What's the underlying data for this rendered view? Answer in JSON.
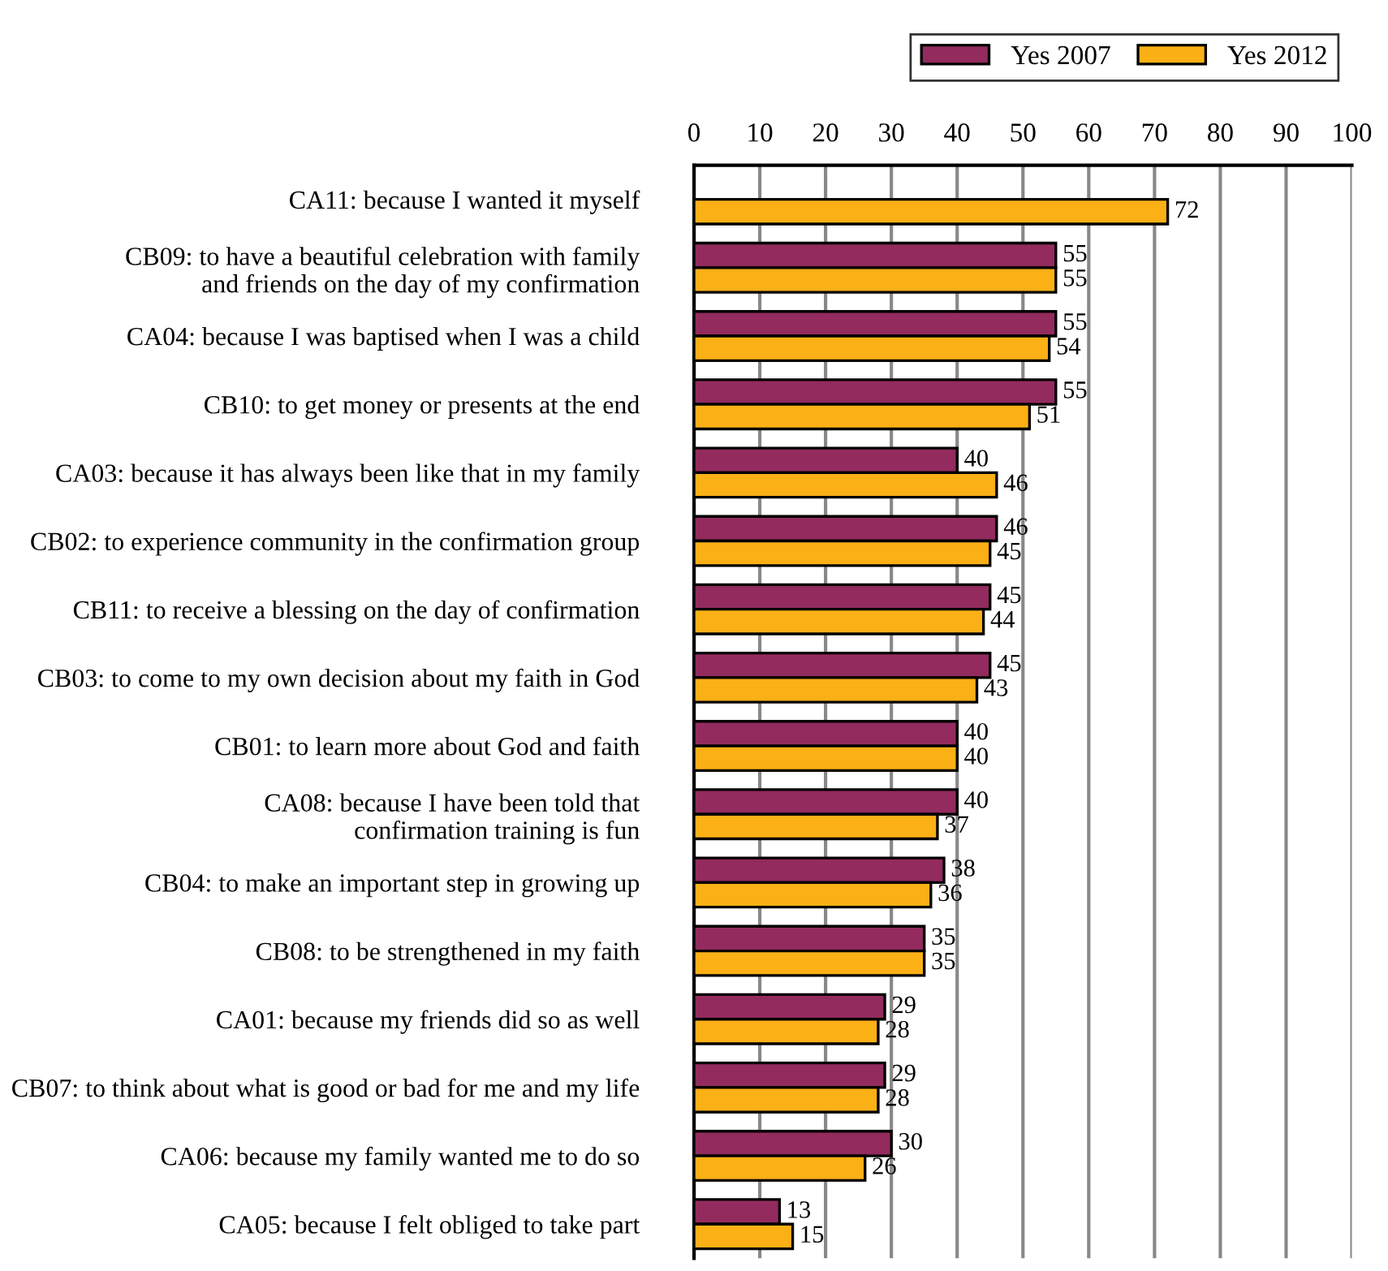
{
  "chart_data": {
    "type": "bar",
    "orientation": "horizontal",
    "categories": [
      "CA11: because I wanted it myself",
      "CB09: to have a beautiful celebration with family\nand friends on the day of my confirmation",
      "CA04: because I was baptised when I was a child",
      "CB10: to get money or presents at the end",
      "CA03: because it has always been like that in my family",
      "CB02: to experience community in the confirmation group",
      "CB11: to receive a blessing on the day of confirmation",
      "CB03: to come to my own decision about my faith in God",
      "CB01: to learn more about God and faith",
      "CA08: because I have been told that\nconfirmation training is fun",
      "CB04: to make an important step in growing up",
      "CB08: to be strengthened in my faith",
      "CA01: because my friends did so as well",
      "CB07: to think about what is good or bad for me and my life",
      "CA06: because my family wanted me to do so",
      "CA05: because I felt obliged to take part"
    ],
    "series": [
      {
        "name": "Yes 2007",
        "color": "#932b5e",
        "values": [
          null,
          55,
          55,
          55,
          40,
          46,
          45,
          45,
          40,
          40,
          38,
          35,
          29,
          29,
          30,
          13
        ]
      },
      {
        "name": "Yes 2012",
        "color": "#fbb016",
        "values": [
          72,
          55,
          54,
          51,
          46,
          45,
          44,
          43,
          40,
          37,
          36,
          35,
          28,
          28,
          26,
          15
        ]
      }
    ],
    "xlim": [
      0,
      100
    ],
    "xticks": [
      0,
      10,
      20,
      30,
      40,
      50,
      60,
      70,
      80,
      90,
      100
    ],
    "grid": "x",
    "legend": "top right",
    "data_labels": true
  }
}
